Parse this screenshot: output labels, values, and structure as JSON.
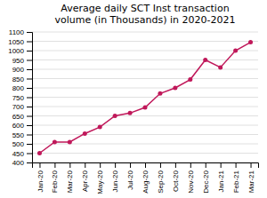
{
  "chart_data": {
    "type": "line",
    "title": "Average daily SCT Inst transaction\nvolume (in Thousands) in 2020-2021",
    "categories": [
      "Jan-20",
      "Feb-20",
      "Mar-20",
      "Apr-20",
      "May-20",
      "Jun-20",
      "Jul-20",
      "Aug-20",
      "Sep-20",
      "Oct-20",
      "Nov-20",
      "Dec-20",
      "Jan-21",
      "Feb-21",
      "Mar-21"
    ],
    "values": [
      450,
      510,
      510,
      555,
      590,
      650,
      665,
      695,
      770,
      800,
      845,
      950,
      910,
      1000,
      1045
    ],
    "color": "#c0185a",
    "marker": "circle",
    "ylim": [
      400,
      1100
    ],
    "yticks": [
      400,
      450,
      500,
      550,
      600,
      650,
      700,
      750,
      800,
      850,
      900,
      950,
      1000,
      1050,
      1100
    ],
    "grid": true
  }
}
